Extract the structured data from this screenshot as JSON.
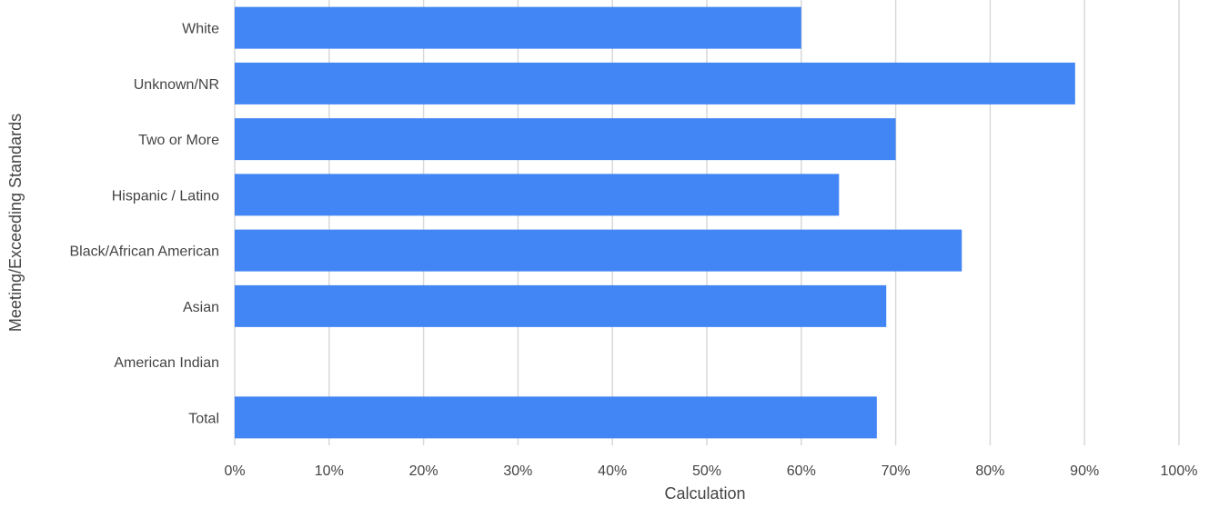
{
  "chart_data": {
    "type": "bar",
    "orientation": "horizontal",
    "categories": [
      "White",
      "Unknown/NR",
      "Two or More",
      "Hispanic / Latino",
      "Black/African American",
      "Asian",
      "American Indian",
      "Total"
    ],
    "values": [
      60,
      89,
      70,
      64,
      77,
      69,
      null,
      68
    ],
    "xlabel": "Calculation",
    "ylabel": "Meeting/Exceeding Standards",
    "xlim": [
      0,
      100
    ],
    "xticks": [
      "0%",
      "10%",
      "20%",
      "30%",
      "40%",
      "50%",
      "60%",
      "70%",
      "80%",
      "90%",
      "100%"
    ],
    "grid": true,
    "bar_color": "#4285f4"
  }
}
